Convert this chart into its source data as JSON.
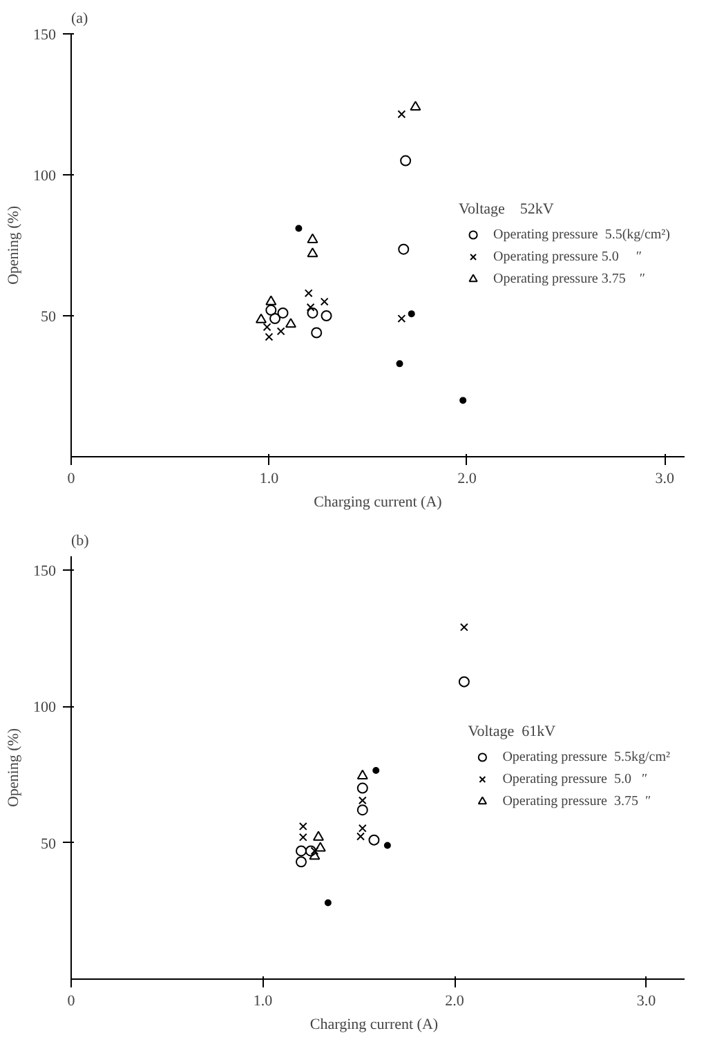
{
  "chart_data": [
    {
      "type": "scatter",
      "title": "(a)",
      "xlabel": "Charging current (A)",
      "ylabel": "Opening (%)",
      "legend_title": "Voltage    52kV",
      "xlim": [
        0,
        3.1
      ],
      "ylim": [
        0,
        150
      ],
      "xticks": [
        {
          "value": 0,
          "label": "0"
        },
        {
          "value": 1,
          "label": "1.0"
        },
        {
          "value": 2,
          "label": "2.0"
        },
        {
          "value": 3,
          "label": "3.0"
        }
      ],
      "yticks": [
        50,
        100,
        150
      ],
      "grid": false,
      "legend": "right",
      "series": [
        {
          "name": "Operating pressure  5.5(kg/cm²)",
          "color": "#000000",
          "marker": "circle",
          "x": [
            1.69,
            1.68,
            1.01,
            1.07,
            1.03,
            1.22,
            1.29,
            1.24
          ],
          "values": [
            105,
            73.6,
            52,
            51,
            49,
            51,
            50,
            44
          ]
        },
        {
          "name": "Operating pressure 5.0     ″",
          "color": "#000000",
          "marker": "cross",
          "x": [
            1.67,
            1.67,
            1.2,
            1.21,
            1.28,
            1.0,
            0.99,
            1.06
          ],
          "values": [
            121.5,
            49,
            58,
            53,
            55,
            42.5,
            46,
            44.5
          ]
        },
        {
          "name": "Operating pressure 3.75    ″",
          "color": "#000000",
          "marker": "triangle",
          "x": [
            1.74,
            1.22,
            1.22,
            1.01,
            0.96,
            1.11
          ],
          "values": [
            124,
            77,
            72,
            55,
            48.6,
            47
          ]
        },
        {
          "color": "#000000",
          "marker": "circle",
          "x": [
            1.15,
            1.72,
            1.66,
            1.98
          ],
          "values": [
            81,
            50.7,
            33,
            20
          ]
        }
      ]
    },
    {
      "type": "scatter",
      "title": "(b)",
      "xlabel": "Charging current   (A)",
      "ylabel": "Opening (%)",
      "legend_title": "Voltage  61kV",
      "xlim": [
        0,
        3.2
      ],
      "ylim": [
        0,
        155
      ],
      "xticks": [
        {
          "value": 0,
          "label": "0"
        },
        {
          "value": 1,
          "label": "1.0"
        },
        {
          "value": 2,
          "label": "2.0"
        },
        {
          "value": 3,
          "label": "3.0"
        }
      ],
      "yticks": [
        50,
        100,
        150
      ],
      "grid": false,
      "legend": "right",
      "series": [
        {
          "name": "Operating pressure  5.5kg/cm²",
          "color": "#000000",
          "marker": "circle",
          "x": [
            2.05,
            1.52,
            1.52,
            1.58,
            1.2,
            1.25,
            1.2
          ],
          "values": [
            109,
            70,
            62,
            51,
            47,
            47,
            43
          ]
        },
        {
          "name": "Operating pressure  5.0   ″",
          "color": "#000000",
          "marker": "cross",
          "x": [
            2.05,
            1.52,
            1.52,
            1.51,
            1.21,
            1.21,
            1.27
          ],
          "values": [
            129,
            65.5,
            55.3,
            52.3,
            56,
            52,
            47
          ]
        },
        {
          "name": "Operating pressure  3.75  ″",
          "color": "#000000",
          "marker": "triangle",
          "x": [
            1.52,
            1.29,
            1.27,
            1.3
          ],
          "values": [
            74.5,
            52,
            45,
            48
          ]
        },
        {
          "color": "#000000",
          "marker": "circle",
          "x": [
            1.65,
            1.59,
            1.34
          ],
          "values": [
            49,
            76.5,
            28
          ]
        }
      ]
    }
  ]
}
